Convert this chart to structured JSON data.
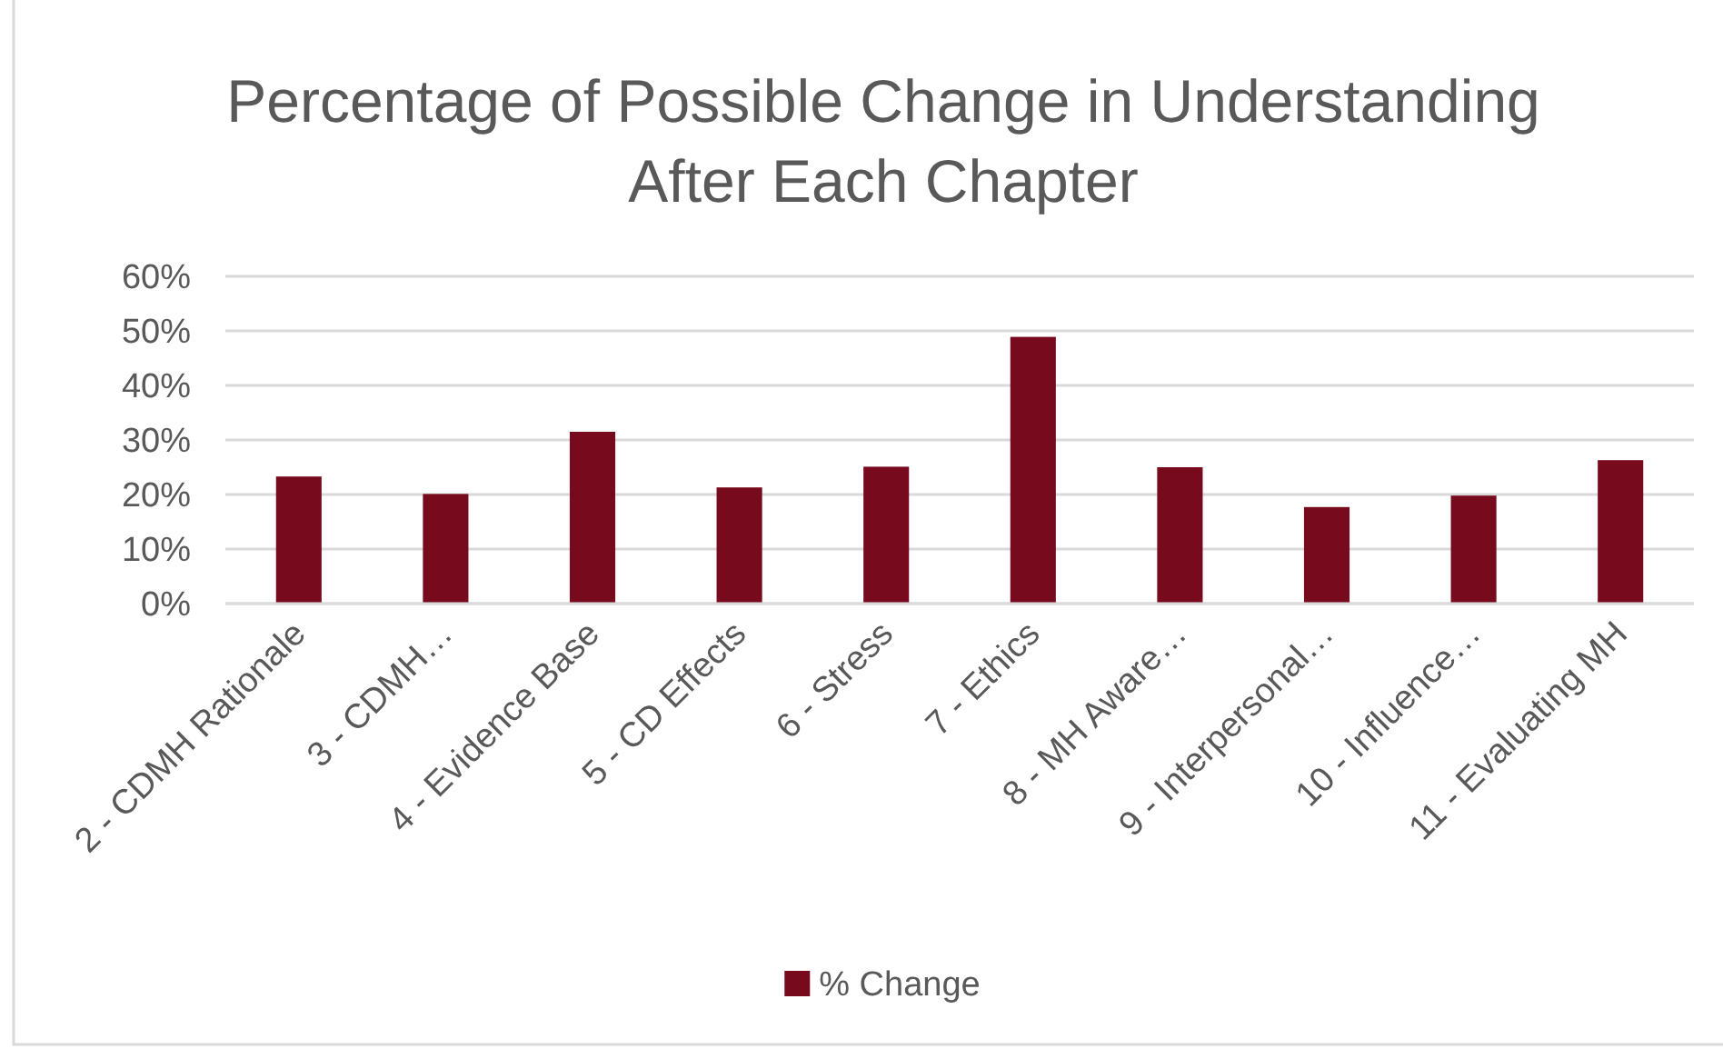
{
  "chart_data": {
    "type": "bar",
    "title": "Percentage of Possible Change in Understanding After Each Chapter",
    "categories": [
      "2 - CDMH Rationale",
      "3 - CDMH…",
      "4 - Evidence Base",
      "5 - CD Effects",
      "6 - Stress",
      "7 - Ethics",
      "8 - MH Aware…",
      "9 - Interpersonal…",
      "10 - Influence…",
      "11 - Evaluating MH"
    ],
    "series": [
      {
        "name": "% Change",
        "color": "#780a1e",
        "values": [
          23.3,
          20.1,
          31.5,
          21.3,
          25.1,
          48.9,
          25.0,
          17.7,
          19.8,
          26.3
        ]
      }
    ],
    "ylim": [
      0,
      60
    ],
    "yticks": [
      {
        "value": 0,
        "label": "0%"
      },
      {
        "value": 10,
        "label": "10%"
      },
      {
        "value": 20,
        "label": "20%"
      },
      {
        "value": 30,
        "label": "30%"
      },
      {
        "value": 40,
        "label": "40%"
      },
      {
        "value": 50,
        "label": "50%"
      },
      {
        "value": 60,
        "label": "60%"
      }
    ],
    "grid": "y",
    "legend": "bottom"
  }
}
